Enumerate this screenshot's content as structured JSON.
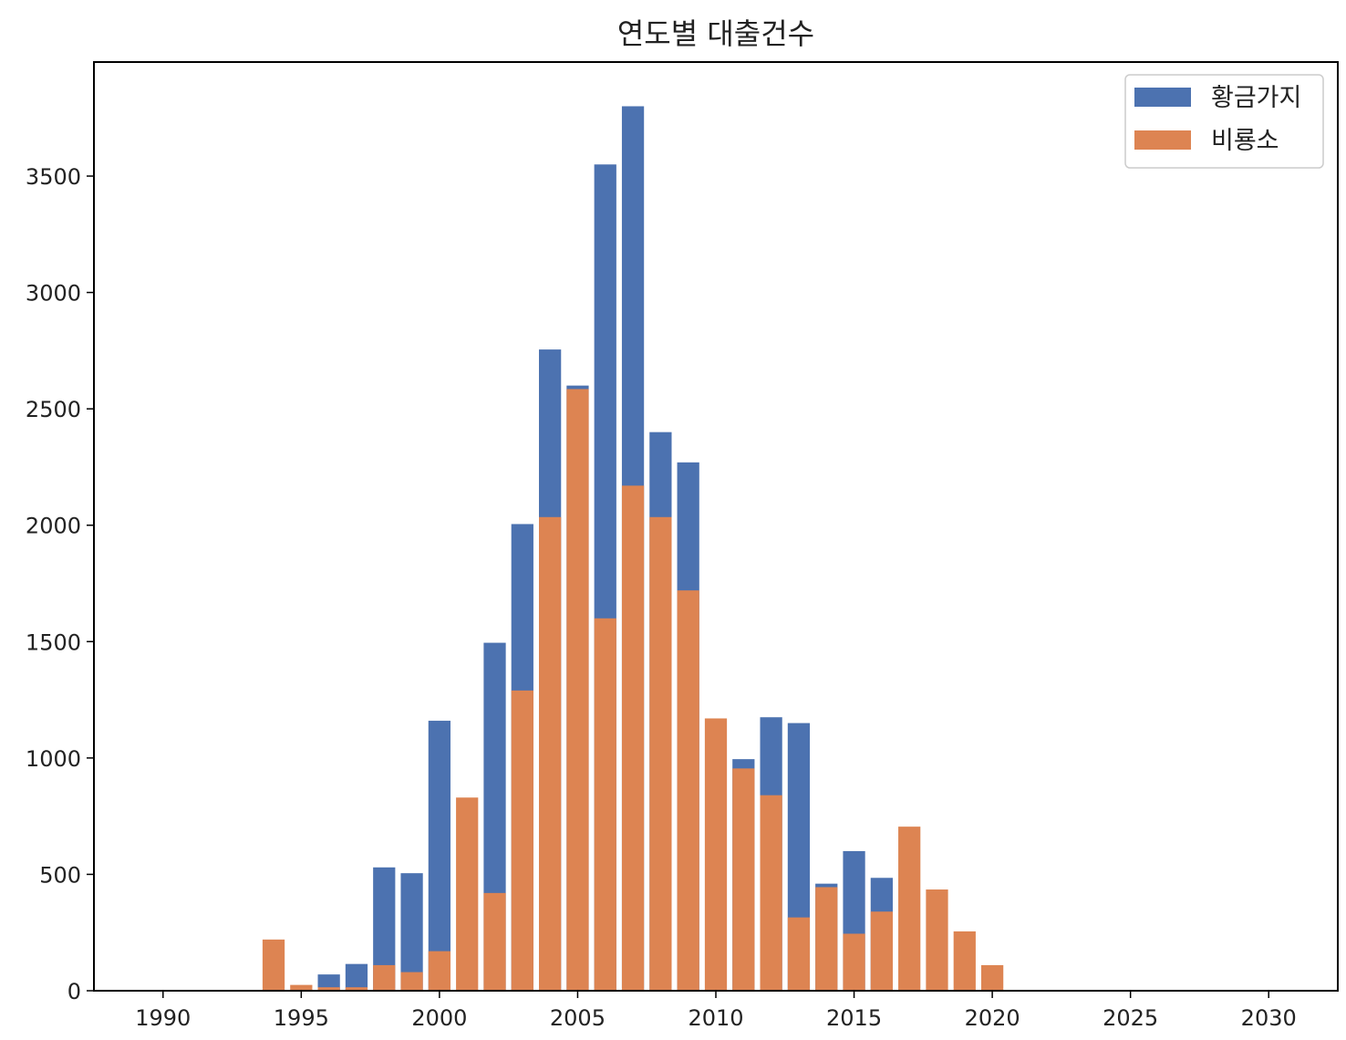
{
  "chart_data": {
    "type": "bar",
    "title": "연도별 대출건수",
    "xlabel": "",
    "ylabel": "",
    "x": [
      1994,
      1995,
      1996,
      1997,
      1998,
      1999,
      2000,
      2001,
      2002,
      2003,
      2004,
      2005,
      2006,
      2007,
      2008,
      2009,
      2010,
      2011,
      2012,
      2013,
      2014,
      2015,
      2016,
      2017,
      2018,
      2019,
      2020
    ],
    "series": [
      {
        "name": "황금가지",
        "color": "#4c72b0",
        "values": [
          0,
          0,
          70,
          115,
          530,
          505,
          1160,
          0,
          1495,
          2005,
          2755,
          2600,
          3550,
          3800,
          2400,
          2270,
          0,
          995,
          1175,
          1150,
          460,
          600,
          485,
          0,
          0,
          0,
          0
        ]
      },
      {
        "name": "비룡소",
        "color": "#dd8452",
        "values": [
          220,
          25,
          15,
          15,
          110,
          80,
          170,
          830,
          420,
          1290,
          2035,
          2585,
          1600,
          2170,
          2035,
          1720,
          1170,
          955,
          840,
          315,
          445,
          245,
          340,
          705,
          435,
          255,
          110
        ]
      }
    ],
    "xlim": [
      1987.5,
      2032.5
    ],
    "ylim": [
      0,
      3990
    ],
    "xticks": [
      "1990",
      "1995",
      "2000",
      "2005",
      "2010",
      "2015",
      "2020",
      "2025",
      "2030"
    ],
    "yticks": [
      "0",
      "500",
      "1000",
      "1500",
      "2000",
      "2500",
      "3000",
      "3500"
    ],
    "legend": "top-right",
    "grid": false
  }
}
